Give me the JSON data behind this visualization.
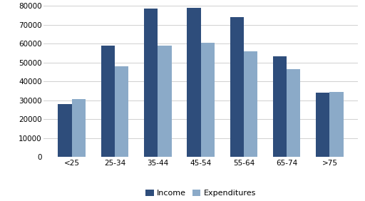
{
  "categories": [
    "<25",
    "25-34",
    "35-44",
    "45-54",
    "55-64",
    "65-74",
    ">75"
  ],
  "income": [
    28000,
    59000,
    78500,
    79000,
    74000,
    53500,
    34000
  ],
  "expenditures": [
    30500,
    48000,
    59000,
    60500,
    56000,
    46500,
    34500
  ],
  "income_color": "#2E4D7B",
  "expenditures_color": "#8BAAC8",
  "ylim": [
    0,
    80000
  ],
  "yticks": [
    0,
    10000,
    20000,
    30000,
    40000,
    50000,
    60000,
    70000,
    80000
  ],
  "legend_labels": [
    "Income",
    "Expenditures"
  ],
  "background_color": "#ffffff",
  "grid_color": "#d0d0d0",
  "bar_width": 0.32,
  "tick_fontsize": 7.5,
  "legend_fontsize": 8
}
